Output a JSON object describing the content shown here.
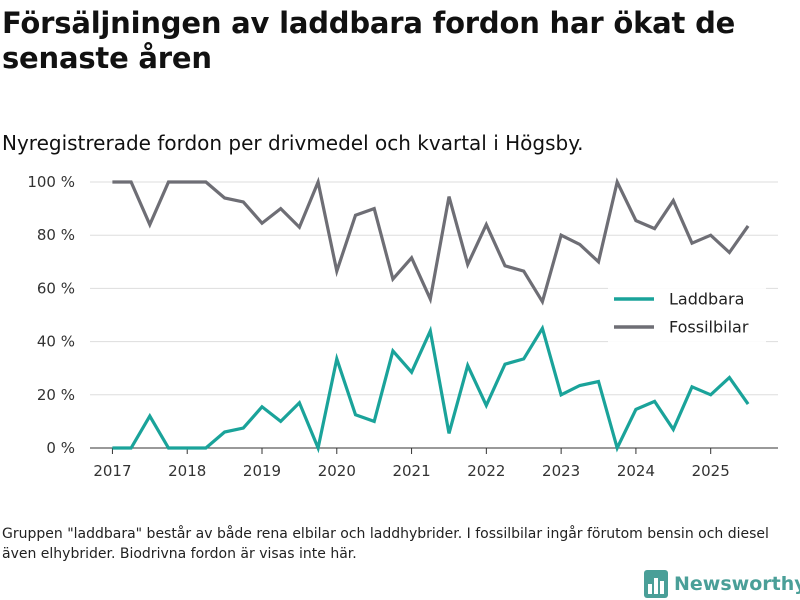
{
  "title": "Försäljningen av laddbara fordon har ökat de senaste åren",
  "subtitle": "Nyregistrerade fordon per drivmedel och kvartal i Högsby.",
  "footnote": "Gruppen \"laddbara\" består av både rena elbilar och laddhybrider. I fossilbilar ingår förutom bensin och diesel även elhybrider. Biodrivna fordon är visas inte här.",
  "logo": {
    "text": "Newsworthy",
    "icon": "bar-chart-logo-icon"
  },
  "colors": {
    "laddbara": "#1aa39a",
    "fossil": "#6e6e75",
    "grid": "#dddddd",
    "axis": "#333333"
  },
  "chart_data": {
    "type": "line",
    "title": "Försäljningen av laddbara fordon har ökat de senaste åren",
    "xlabel": "",
    "ylabel": "",
    "x": [
      2017.0,
      2017.25,
      2017.5,
      2017.75,
      2018.0,
      2018.25,
      2018.5,
      2018.75,
      2019.0,
      2019.25,
      2019.5,
      2019.75,
      2020.0,
      2020.25,
      2020.5,
      2020.75,
      2021.0,
      2021.25,
      2021.5,
      2021.75,
      2022.0,
      2022.25,
      2022.5,
      2022.75,
      2023.0,
      2023.25,
      2023.5,
      2023.75,
      2024.0,
      2024.25,
      2024.5,
      2024.75,
      2025.0,
      2025.25,
      2025.5
    ],
    "xlim": [
      2016.7,
      2025.9
    ],
    "xticks": [
      2017,
      2018,
      2019,
      2020,
      2021,
      2022,
      2023,
      2024,
      2025
    ],
    "xtick_labels": [
      "2017",
      "2018",
      "2019",
      "2020",
      "2021",
      "2022",
      "2023",
      "2024",
      "2025"
    ],
    "ylim": [
      0,
      100
    ],
    "yticks": [
      0,
      20,
      40,
      60,
      80,
      100
    ],
    "ytick_labels": [
      "0 %",
      "20 %",
      "40 %",
      "60 %",
      "80 %",
      "100 %"
    ],
    "grid": true,
    "legend_position": "right",
    "series": [
      {
        "name": "Laddbara",
        "color": "#1aa39a",
        "values": [
          0,
          0,
          12,
          0,
          0,
          0,
          6,
          7.5,
          15.5,
          10,
          17,
          0,
          33.5,
          12.5,
          10,
          36.5,
          28.5,
          44,
          5.5,
          31,
          16,
          31.5,
          33.5,
          45,
          20,
          23.5,
          25,
          0,
          14.5,
          17.5,
          7,
          23,
          20,
          26.5,
          16.5
        ]
      },
      {
        "name": "Fossilbilar",
        "color": "#6e6e75",
        "values": [
          100,
          100,
          84,
          100,
          100,
          100,
          94,
          92.5,
          84.5,
          90,
          83,
          100,
          66.5,
          87.5,
          90,
          63.5,
          71.5,
          56,
          94.5,
          69,
          84,
          68.5,
          66.5,
          55,
          80,
          76.5,
          70,
          100,
          85.5,
          82.5,
          93,
          77,
          80,
          73.5,
          83.5
        ]
      }
    ]
  }
}
